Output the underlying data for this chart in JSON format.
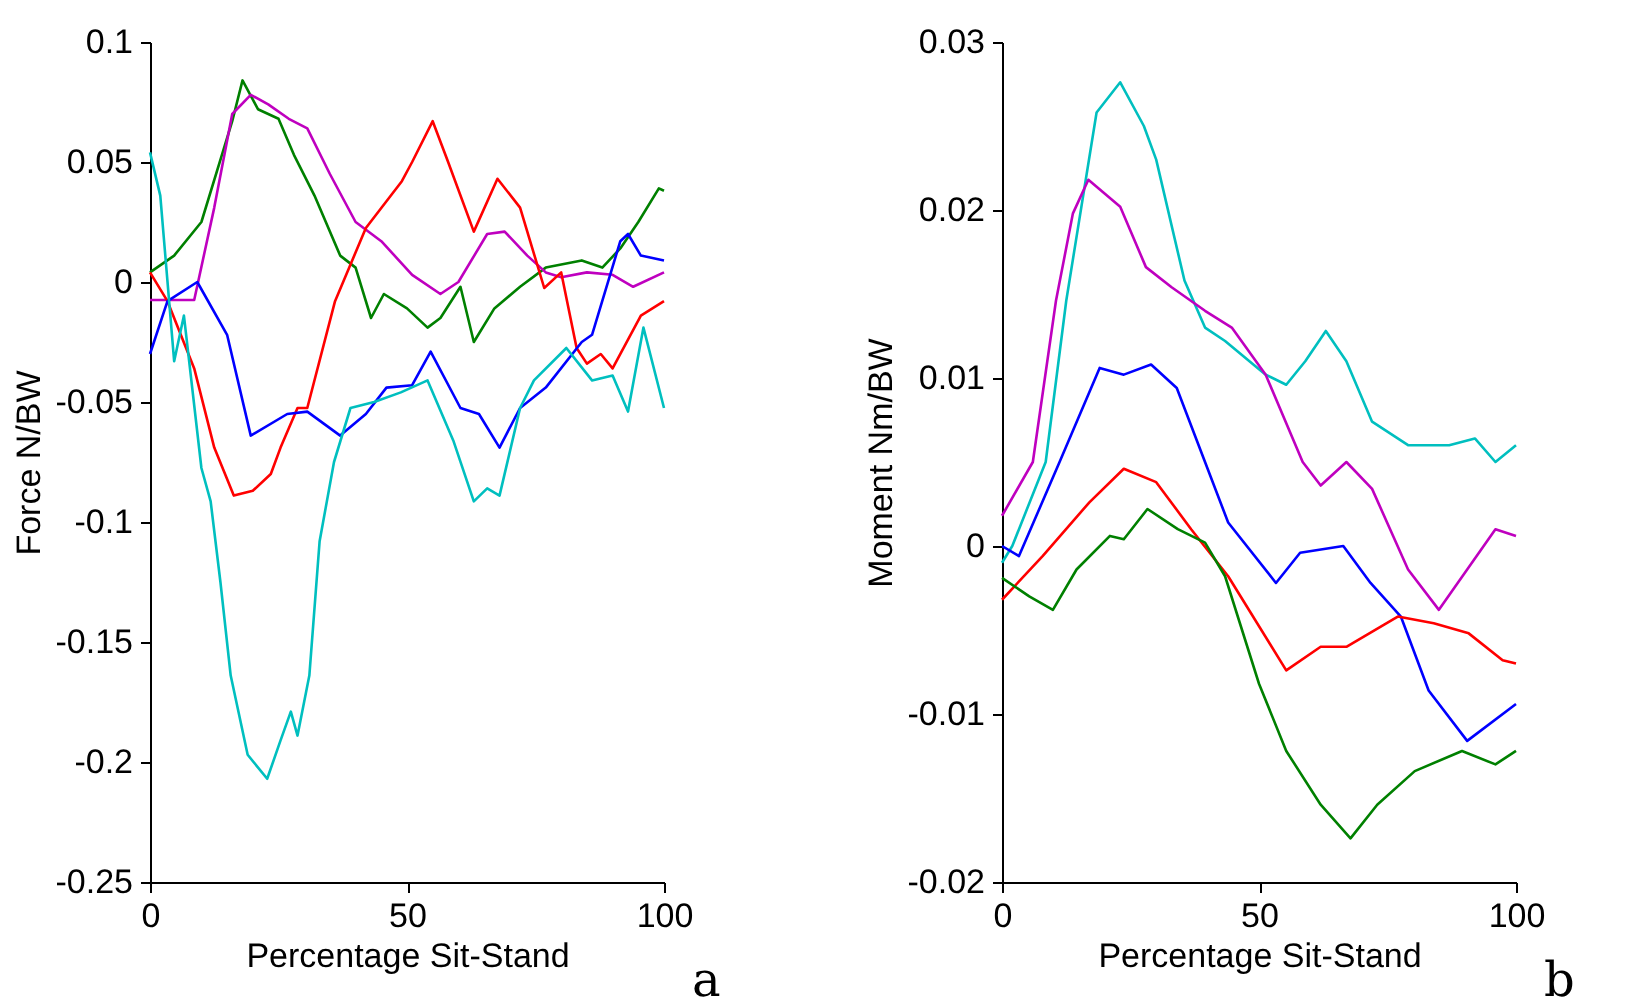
{
  "chart_data": [
    {
      "type": "line",
      "xlabel": "Percentage Sit-Stand",
      "ylabel": "Force N/BW",
      "xlim": [
        0,
        100
      ],
      "xticks": [
        0,
        50,
        100
      ],
      "ylim": [
        -0.25,
        0.1
      ],
      "yticks": [
        -0.25,
        -0.2,
        -0.15,
        -0.1,
        -0.05,
        0,
        0.05,
        0.1
      ],
      "grid": false,
      "legend": false,
      "line_style": "solid",
      "annotations": [
        "a"
      ],
      "series": [
        {
          "color": "#008000",
          "x": [
            0,
            4.7,
            10,
            16,
            18,
            21,
            25,
            28,
            32,
            37,
            40,
            43,
            45.5,
            50,
            54,
            56.5,
            60.4,
            63,
            67,
            72,
            77,
            84,
            88,
            91.5,
            95,
            99,
            100
          ],
          "values": [
            0.004,
            0.011,
            0.025,
            0.067,
            0.084,
            0.072,
            0.068,
            0.053,
            0.036,
            0.011,
            0.006,
            -0.015,
            -0.005,
            -0.011,
            -0.019,
            -0.015,
            -0.002,
            -0.025,
            -0.011,
            -0.002,
            0.006,
            0.009,
            0.006,
            0.014,
            0.025,
            0.039,
            0.038
          ]
        },
        {
          "color": "#bf00bf",
          "x": [
            0,
            8.6,
            12.5,
            16,
            19.6,
            23,
            27,
            30.6,
            35,
            40,
            45,
            51,
            56.5,
            60,
            65.6,
            69,
            73.4,
            77,
            80,
            85,
            90,
            94,
            100
          ],
          "values": [
            -0.0075,
            -0.0075,
            0.031,
            0.07,
            0.078,
            0.074,
            0.068,
            0.064,
            0.045,
            0.025,
            0.017,
            0.003,
            -0.005,
            0,
            0.02,
            0.021,
            0.011,
            0.004,
            0.002,
            0.004,
            0.003,
            -0.002,
            0.004
          ]
        },
        {
          "color": "#ff0000",
          "x": [
            0,
            3.4,
            8.6,
            12.5,
            16.3,
            20,
            23.5,
            25.4,
            28.7,
            30.6,
            36,
            42,
            49,
            51,
            55,
            58,
            63,
            67.6,
            72,
            76.7,
            80,
            83,
            85,
            87.7,
            90,
            95.5,
            100
          ],
          "values": [
            0.004,
            -0.008,
            -0.036,
            -0.069,
            -0.089,
            -0.087,
            -0.08,
            -0.069,
            -0.0525,
            -0.0525,
            -0.008,
            0.0225,
            0.042,
            0.05,
            0.067,
            0.05,
            0.021,
            0.043,
            0.031,
            -0.0025,
            0.004,
            -0.0275,
            -0.034,
            -0.03,
            -0.036,
            -0.014,
            -0.008
          ]
        },
        {
          "color": "#0000ff",
          "x": [
            0,
            3.4,
            9.2,
            15,
            19.6,
            26.7,
            30.6,
            37,
            42,
            46,
            51,
            54.6,
            60.4,
            64,
            68,
            72,
            77,
            84,
            86,
            91.5,
            93,
            95.5,
            100
          ],
          "values": [
            -0.03,
            -0.008,
            0,
            -0.022,
            -0.064,
            -0.055,
            -0.054,
            -0.064,
            -0.055,
            -0.044,
            -0.043,
            -0.029,
            -0.0525,
            -0.055,
            -0.069,
            -0.0525,
            -0.044,
            -0.025,
            -0.022,
            0.017,
            0.02,
            0.011,
            0.009
          ]
        },
        {
          "color": "#00bfbf",
          "x": [
            0,
            2,
            4.7,
            6.6,
            10,
            11.8,
            13.7,
            15.7,
            19,
            22.8,
            25.4,
            27.4,
            28.7,
            31,
            33,
            35.8,
            39,
            43.6,
            48.8,
            54,
            59,
            63,
            65.6,
            68,
            72,
            74.7,
            81,
            86,
            90,
            93,
            96,
            100
          ],
          "values": [
            0.054,
            0.036,
            -0.033,
            -0.014,
            -0.0775,
            -0.0914,
            -0.125,
            -0.164,
            -0.197,
            -0.207,
            -0.191,
            -0.179,
            -0.189,
            -0.164,
            -0.108,
            -0.075,
            -0.0525,
            -0.05,
            -0.046,
            -0.041,
            -0.066,
            -0.0914,
            -0.086,
            -0.089,
            -0.0525,
            -0.041,
            -0.0275,
            -0.041,
            -0.039,
            -0.054,
            -0.019,
            -0.0525
          ]
        }
      ]
    },
    {
      "type": "line",
      "xlabel": "Percentage Sit-Stand",
      "ylabel": "Moment Nm/BW",
      "xlim": [
        0,
        100
      ],
      "xticks": [
        0,
        50,
        100
      ],
      "ylim": [
        -0.02,
        0.03
      ],
      "yticks": [
        -0.02,
        -0.01,
        0,
        0.01,
        0.02,
        0.03
      ],
      "grid": false,
      "legend": false,
      "line_style": "solid",
      "annotations": [
        "b"
      ],
      "series": [
        {
          "color": "#00bfbf",
          "x": [
            0,
            2,
            8.5,
            12.5,
            18.4,
            23,
            27.6,
            30,
            35.5,
            39.5,
            43.4,
            51.3,
            55.3,
            59,
            63,
            67,
            72,
            79,
            87,
            92,
            96,
            100
          ],
          "values": [
            -0.001,
            0,
            0.005,
            0.0146,
            0.0258,
            0.0276,
            0.025,
            0.023,
            0.0158,
            0.013,
            0.0122,
            0.0102,
            0.0096,
            0.011,
            0.0128,
            0.011,
            0.0074,
            0.006,
            0.006,
            0.0064,
            0.005,
            0.006
          ]
        },
        {
          "color": "#bf00bf",
          "x": [
            0,
            6,
            10.5,
            13.8,
            16.8,
            23,
            28,
            33,
            39.5,
            44.7,
            51.3,
            58.5,
            62,
            67,
            72,
            79,
            85,
            96,
            100
          ],
          "values": [
            0.0018,
            0.005,
            0.0146,
            0.0198,
            0.0218,
            0.0202,
            0.0166,
            0.0154,
            0.014,
            0.013,
            0.0102,
            0.005,
            0.0036,
            0.005,
            0.0034,
            -0.0014,
            -0.0038,
            0.001,
            0.0006
          ]
        },
        {
          "color": "#0000ff",
          "x": [
            0,
            3.3,
            11.2,
            19,
            23.7,
            29,
            34,
            39.5,
            44,
            53.3,
            58,
            66.4,
            71.7,
            77.6,
            83,
            90.5,
            100
          ],
          "values": [
            0,
            -0.0006,
            0.005,
            0.0106,
            0.0102,
            0.0108,
            0.0094,
            0.005,
            0.0014,
            -0.0022,
            -0.0004,
            0,
            -0.0022,
            -0.0042,
            -0.0086,
            -0.0116,
            -0.0094
          ]
        },
        {
          "color": "#ff0000",
          "x": [
            0,
            7.9,
            17,
            23.7,
            30,
            36.8,
            44,
            55.3,
            62,
            67,
            77,
            84,
            90.8,
            97.4,
            100
          ],
          "values": [
            -0.0032,
            -0.0006,
            0.0026,
            0.0046,
            0.0038,
            0.001,
            -0.0018,
            -0.0074,
            -0.006,
            -0.006,
            -0.0042,
            -0.0046,
            -0.0052,
            -0.0068,
            -0.007
          ]
        },
        {
          "color": "#008000",
          "x": [
            0,
            5.3,
            9.9,
            14.5,
            21,
            23.7,
            28.3,
            34.2,
            39.5,
            43.4,
            50,
            55.3,
            62,
            67.8,
            73,
            80.3,
            89.5,
            96,
            100
          ],
          "values": [
            -0.0019,
            -0.003,
            -0.0038,
            -0.0014,
            0.0006,
            0.0004,
            0.0022,
            0.001,
            0.0002,
            -0.0018,
            -0.0082,
            -0.0122,
            -0.0154,
            -0.0174,
            -0.0154,
            -0.0134,
            -0.0122,
            -0.013,
            -0.0122
          ]
        }
      ]
    }
  ]
}
